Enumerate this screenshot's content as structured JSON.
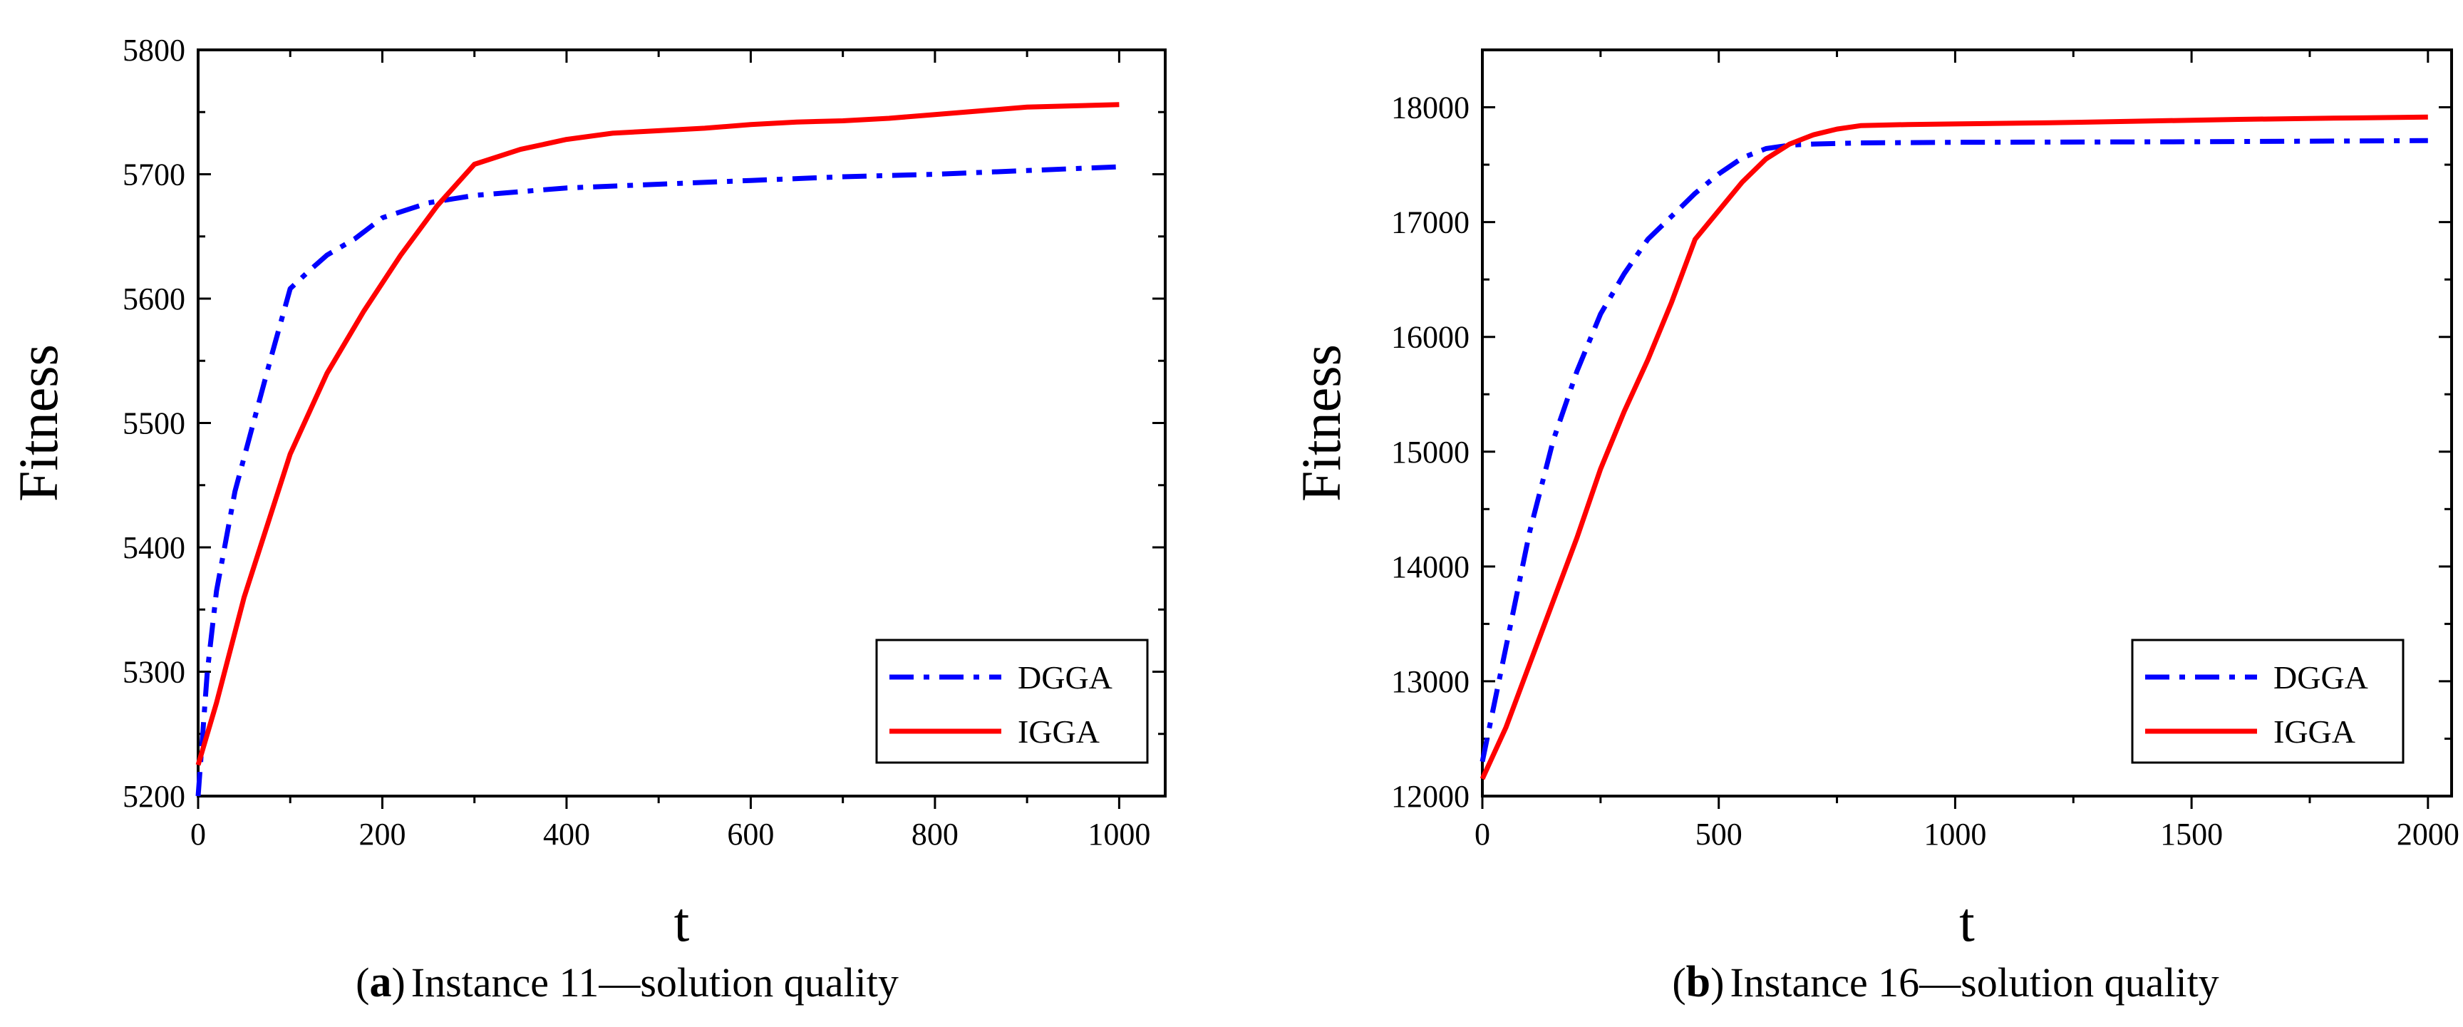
{
  "chart_data": [
    {
      "type": "line",
      "title": "",
      "xlabel": "t",
      "ylabel": "Fitness",
      "xlim": [
        0,
        1050
      ],
      "ylim": [
        5200,
        5800
      ],
      "xticks": [
        0,
        200,
        400,
        600,
        800,
        1000
      ],
      "yticks": [
        5200,
        5300,
        5400,
        5500,
        5600,
        5700,
        5800
      ],
      "legend_position": "bottom-right",
      "grid": false,
      "caption_letter": "a",
      "caption_text": "Instance 11—solution quality",
      "series": [
        {
          "name": "DGGA",
          "color": "#0000ff",
          "dash": "dash-dot",
          "x": [
            0,
            10,
            20,
            40,
            60,
            80,
            100,
            120,
            140,
            170,
            200,
            250,
            300,
            350,
            400,
            500,
            600,
            700,
            800,
            900,
            1000
          ],
          "y": [
            5200,
            5300,
            5365,
            5445,
            5500,
            5555,
            5608,
            5622,
            5635,
            5648,
            5665,
            5677,
            5683,
            5686,
            5689,
            5692,
            5695,
            5698,
            5700,
            5703,
            5706
          ]
        },
        {
          "name": "IGGA",
          "color": "#ff0000",
          "dash": "solid",
          "x": [
            0,
            20,
            50,
            100,
            140,
            180,
            220,
            260,
            300,
            350,
            400,
            450,
            500,
            550,
            600,
            650,
            700,
            750,
            800,
            850,
            900,
            1000
          ],
          "y": [
            5225,
            5275,
            5360,
            5475,
            5540,
            5590,
            5635,
            5675,
            5708,
            5720,
            5728,
            5733,
            5735,
            5737,
            5740,
            5742,
            5743,
            5745,
            5748,
            5751,
            5754,
            5756
          ]
        }
      ]
    },
    {
      "type": "line",
      "title": "",
      "xlabel": "t",
      "ylabel": "Fitness",
      "xlim": [
        0,
        2050
      ],
      "ylim": [
        12000,
        18500
      ],
      "xticks": [
        0,
        500,
        1000,
        1500,
        2000
      ],
      "yticks": [
        12000,
        13000,
        14000,
        15000,
        16000,
        17000,
        18000
      ],
      "legend_position": "bottom-right",
      "grid": false,
      "caption_letter": "b",
      "caption_text": "Instance 16—solution quality",
      "series": [
        {
          "name": "DGGA",
          "color": "#0000ff",
          "dash": "dash-dot",
          "x": [
            0,
            50,
            100,
            150,
            200,
            250,
            300,
            350,
            400,
            450,
            500,
            550,
            600,
            650,
            700,
            800,
            1000,
            1500,
            2000
          ],
          "y": [
            12300,
            13300,
            14300,
            15100,
            15700,
            16200,
            16550,
            16850,
            17050,
            17250,
            17420,
            17560,
            17640,
            17670,
            17680,
            17690,
            17695,
            17700,
            17710
          ]
        },
        {
          "name": "IGGA",
          "color": "#ff0000",
          "dash": "solid",
          "x": [
            0,
            50,
            100,
            150,
            200,
            250,
            300,
            350,
            400,
            450,
            500,
            550,
            600,
            650,
            700,
            750,
            800,
            900,
            1000,
            1200,
            1400,
            1600,
            1800,
            2000
          ],
          "y": [
            12150,
            12600,
            13150,
            13700,
            14250,
            14850,
            15350,
            15800,
            16300,
            16850,
            17100,
            17350,
            17550,
            17680,
            17760,
            17810,
            17840,
            17850,
            17855,
            17865,
            17880,
            17895,
            17905,
            17915
          ]
        }
      ]
    }
  ]
}
